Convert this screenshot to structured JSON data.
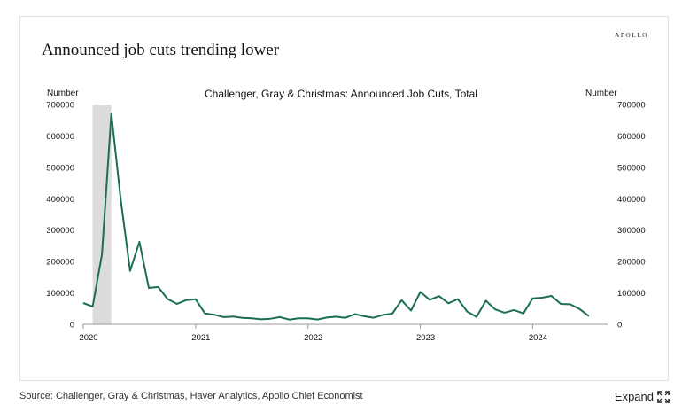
{
  "brand": "APOLLO",
  "title": "Announced job cuts trending lower",
  "source": "Source: Challenger, Gray & Christmas, Haver Analytics, Apollo Chief Economist",
  "expand_label": "Expand",
  "expand_icon": "expand-arrows-icon",
  "colors": {
    "line": "#1b6e52",
    "shade": "#dcdcdc"
  },
  "chart_data": {
    "type": "line",
    "title": "Challenger, Gray & Christmas: Announced Job Cuts, Total",
    "ylabel_left": "Number",
    "ylabel_right": "Number",
    "ylim": [
      0,
      700000
    ],
    "yticks": [
      "0",
      "100000",
      "200000",
      "300000",
      "400000",
      "500000",
      "600000",
      "700000"
    ],
    "xticks": [
      "2020",
      "2021",
      "2022",
      "2023",
      "2024"
    ],
    "grid": false,
    "recession_shade": [
      "2020-02",
      "2020-04"
    ],
    "series": [
      {
        "x": [
          "2020-01",
          "2020-02",
          "2020-03",
          "2020-04",
          "2020-05",
          "2020-06",
          "2020-07",
          "2020-08",
          "2020-09",
          "2020-10",
          "2020-11",
          "2020-12",
          "2021-01",
          "2021-02",
          "2021-03",
          "2021-04",
          "2021-05",
          "2021-06",
          "2021-07",
          "2021-08",
          "2021-09",
          "2021-10",
          "2021-11",
          "2021-12",
          "2022-01",
          "2022-02",
          "2022-03",
          "2022-04",
          "2022-05",
          "2022-06",
          "2022-07",
          "2022-08",
          "2022-09",
          "2022-10",
          "2022-11",
          "2022-12",
          "2023-01",
          "2023-02",
          "2023-03",
          "2023-04",
          "2023-05",
          "2023-06",
          "2023-07",
          "2023-08",
          "2023-09",
          "2023-10",
          "2023-11",
          "2023-12",
          "2024-01",
          "2024-02",
          "2024-03",
          "2024-04",
          "2024-05",
          "2024-06",
          "2024-07"
        ],
        "values": [
          67735,
          56660,
          222288,
          671129,
          397016,
          170219,
          262649,
          115762,
          118804,
          80666,
          64797,
          77030,
          79552,
          34531,
          30603,
          22913,
          24586,
          20476,
          18942,
          15723,
          17895,
          22822,
          14875,
          19052,
          19064,
          15245,
          21387,
          24286,
          20712,
          32517,
          25810,
          20781,
          29989,
          33843,
          76835,
          43651,
          102943,
          77770,
          89703,
          66995,
          80089,
          40709,
          23697,
          75151,
          47457,
          36836,
          45510,
          34817,
          82307,
          84638,
          90309,
          64789,
          63816,
          48786,
          25885
        ]
      }
    ]
  }
}
